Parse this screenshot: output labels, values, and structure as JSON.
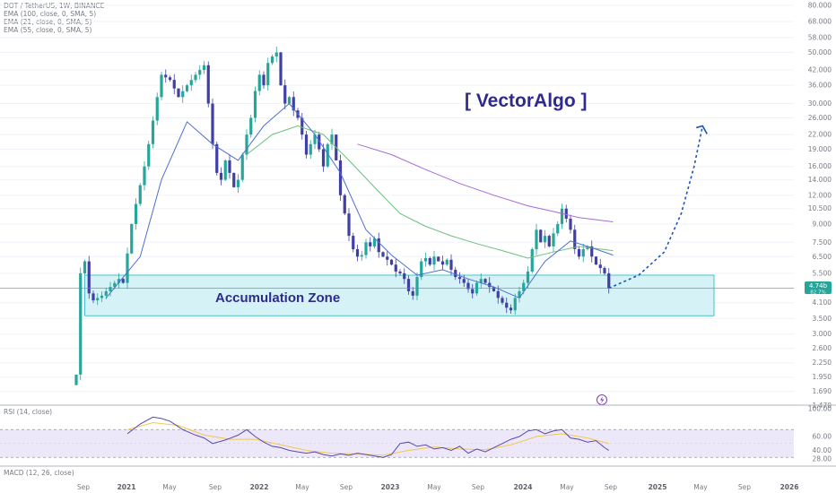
{
  "header": {
    "symbol_line": "DOT / TetherUS, 1W, BINANCE",
    "indicators": [
      "EMA (100, close, 0, SMA, 5)",
      "EMA (21, close, 0, SMA, 5)",
      "EMA (55, close, 0, SMA, 5)"
    ]
  },
  "annotations": {
    "brand": "[ VectorAlgo ]",
    "zone_label": "Accumulation Zone",
    "price_badge": "4.74b",
    "price_badge_sub": "82 7%",
    "lightning_icon": "lightning-icon"
  },
  "rsi_panel": {
    "label": "RSI (14, close)",
    "ticks": [
      "100.00",
      "60.00",
      "40.00",
      "28.00"
    ]
  },
  "macd_panel": {
    "label": "MACD (12, 26, close)"
  },
  "time_axis": [
    {
      "label": "Sep",
      "year": false
    },
    {
      "label": "2021",
      "year": true
    },
    {
      "label": "May",
      "year": false
    },
    {
      "label": "Sep",
      "year": false
    },
    {
      "label": "2022",
      "year": true
    },
    {
      "label": "May",
      "year": false
    },
    {
      "label": "Sep",
      "year": false
    },
    {
      "label": "2023",
      "year": true
    },
    {
      "label": "May",
      "year": false
    },
    {
      "label": "Sep",
      "year": false
    },
    {
      "label": "2024",
      "year": true
    },
    {
      "label": "May",
      "year": false
    },
    {
      "label": "Sep",
      "year": false
    },
    {
      "label": "2025",
      "year": true
    },
    {
      "label": "May",
      "year": false
    },
    {
      "label": "Sep",
      "year": false
    },
    {
      "label": "2026",
      "year": true
    }
  ],
  "colors": {
    "up": "#26a69a",
    "down": "#3f3fa6",
    "ema21": "#4f6fcf",
    "ema55": "#6cc17c",
    "ema100": "#a66bd6",
    "zone_fill": "#d5f3f6",
    "zone_stroke": "#1fb6c1",
    "brand": "#2f2a8c",
    "projection": "#1e54b8",
    "rsi_line": "#5b4aa8",
    "rsi_ma": "#f0c94a",
    "rsi_band": "#ede7fa"
  },
  "chart_data": {
    "type": "candlestick",
    "title": "DOT / TetherUS, 1W, BINANCE",
    "y_scale": "log",
    "ylim": [
      1.5,
      80
    ],
    "y_ticks": [
      80,
      68,
      58,
      50,
      42,
      36,
      30,
      26,
      22,
      19,
      16,
      14,
      12,
      10.5,
      9,
      7.5,
      6.5,
      5.5,
      4.1,
      3.5,
      3.0,
      2.6,
      2.25,
      1.95,
      1.69,
      1.47
    ],
    "y_tick_labels": [
      "80.000",
      "68.000",
      "58.000",
      "50.000",
      "42.000",
      "36.000",
      "30.000",
      "26.000",
      "22.000",
      "19.000",
      "16.000",
      "14.000",
      "12.000",
      "10.500",
      "9.000",
      "7.500",
      "6.500",
      "5.500",
      "4.100",
      "3.500",
      "3.000",
      "2.600",
      "2.250",
      "1.950",
      "1.690",
      "1.470"
    ],
    "last_price": 4.74,
    "accumulation_zone": {
      "low": 3.6,
      "high": 5.4
    },
    "price_path": [
      [
        0,
        2.0
      ],
      [
        1,
        5.5
      ],
      [
        2,
        6.2
      ],
      [
        3,
        4.5
      ],
      [
        4,
        4.2
      ],
      [
        5,
        4.3
      ],
      [
        6,
        4.4
      ],
      [
        8,
        4.8
      ],
      [
        10,
        5.2
      ],
      [
        11,
        5.0
      ],
      [
        13,
        9
      ],
      [
        14,
        11
      ],
      [
        16,
        16
      ],
      [
        17,
        20
      ],
      [
        19,
        32
      ],
      [
        20,
        40
      ],
      [
        22,
        38
      ],
      [
        24,
        32
      ],
      [
        26,
        36
      ],
      [
        28,
        40
      ],
      [
        30,
        44
      ],
      [
        31,
        30
      ],
      [
        32,
        20
      ],
      [
        33,
        15
      ],
      [
        34,
        14
      ],
      [
        35,
        17
      ],
      [
        36,
        15
      ],
      [
        37,
        13
      ],
      [
        38,
        14
      ],
      [
        39,
        18
      ],
      [
        40,
        22
      ],
      [
        41,
        26
      ],
      [
        42,
        34
      ],
      [
        43,
        40
      ],
      [
        44,
        36
      ],
      [
        45,
        45
      ],
      [
        46,
        48
      ],
      [
        47,
        50
      ],
      [
        48,
        36
      ],
      [
        49,
        30
      ],
      [
        50,
        32
      ],
      [
        51,
        28
      ],
      [
        52,
        26
      ],
      [
        53,
        22
      ],
      [
        54,
        18
      ],
      [
        55,
        20
      ],
      [
        56,
        22
      ],
      [
        57,
        19
      ],
      [
        58,
        16
      ],
      [
        59,
        20
      ],
      [
        60,
        22
      ],
      [
        61,
        17
      ],
      [
        62,
        12
      ],
      [
        63,
        10
      ],
      [
        64,
        8
      ],
      [
        65,
        7
      ],
      [
        66,
        6.5
      ],
      [
        67,
        6.6
      ],
      [
        68,
        7.5
      ],
      [
        69,
        7.2
      ],
      [
        70,
        7.8
      ],
      [
        71,
        6.8
      ],
      [
        72,
        6.5
      ],
      [
        73,
        6.3
      ],
      [
        74,
        6.0
      ],
      [
        75,
        5.6
      ],
      [
        76,
        5.5
      ],
      [
        77,
        5.2
      ],
      [
        78,
        4.6
      ],
      [
        79,
        4.4
      ],
      [
        80,
        5.3
      ],
      [
        81,
        6.2
      ],
      [
        82,
        6.4
      ],
      [
        83,
        6.0
      ],
      [
        84,
        6.5
      ],
      [
        85,
        6.2
      ],
      [
        86,
        6.0
      ],
      [
        87,
        6.3
      ],
      [
        88,
        5.7
      ],
      [
        89,
        5.3
      ],
      [
        90,
        5.2
      ],
      [
        91,
        5.0
      ],
      [
        92,
        4.7
      ],
      [
        93,
        4.5
      ],
      [
        94,
        5.0
      ],
      [
        95,
        5.2
      ],
      [
        96,
        5.0
      ],
      [
        97,
        4.8
      ],
      [
        98,
        4.6
      ],
      [
        99,
        4.3
      ],
      [
        100,
        4.1
      ],
      [
        101,
        3.9
      ],
      [
        102,
        3.8
      ],
      [
        103,
        4.3
      ],
      [
        104,
        4.6
      ],
      [
        105,
        5.0
      ],
      [
        106,
        5.6
      ],
      [
        107,
        7.0
      ],
      [
        108,
        8.5
      ],
      [
        109,
        7.5
      ],
      [
        110,
        8.0
      ],
      [
        111,
        7.2
      ],
      [
        112,
        8.2
      ],
      [
        113,
        9.0
      ],
      [
        114,
        10.5
      ],
      [
        115,
        9.5
      ],
      [
        116,
        8.5
      ],
      [
        117,
        7.0
      ],
      [
        118,
        6.5
      ],
      [
        119,
        7.0
      ],
      [
        120,
        7.2
      ],
      [
        121,
        6.5
      ],
      [
        122,
        6.0
      ],
      [
        123,
        5.8
      ],
      [
        124,
        5.5
      ],
      [
        125,
        4.74
      ]
    ],
    "ema21": [
      [
        7,
        4.3
      ],
      [
        15,
        6.5
      ],
      [
        20,
        14
      ],
      [
        26,
        25
      ],
      [
        32,
        20
      ],
      [
        38,
        17
      ],
      [
        44,
        24
      ],
      [
        50,
        30
      ],
      [
        56,
        22
      ],
      [
        62,
        15
      ],
      [
        68,
        8.5
      ],
      [
        74,
        6.6
      ],
      [
        80,
        5.4
      ],
      [
        86,
        5.7
      ],
      [
        92,
        5.2
      ],
      [
        98,
        4.8
      ],
      [
        104,
        4.3
      ],
      [
        110,
        6.2
      ],
      [
        116,
        7.6
      ],
      [
        122,
        7.0
      ],
      [
        126,
        6.6
      ]
    ],
    "ema55": [
      [
        40,
        18
      ],
      [
        46,
        22
      ],
      [
        52,
        24
      ],
      [
        58,
        22
      ],
      [
        64,
        17
      ],
      [
        70,
        13
      ],
      [
        76,
        10
      ],
      [
        82,
        8.8
      ],
      [
        88,
        8.0
      ],
      [
        94,
        7.4
      ],
      [
        100,
        6.9
      ],
      [
        106,
        6.4
      ],
      [
        112,
        6.8
      ],
      [
        118,
        7.2
      ],
      [
        126,
        6.9
      ]
    ],
    "ema100": [
      [
        66,
        20
      ],
      [
        74,
        18
      ],
      [
        82,
        15.5
      ],
      [
        90,
        13.5
      ],
      [
        98,
        12.0
      ],
      [
        106,
        10.8
      ],
      [
        112,
        10.2
      ],
      [
        118,
        9.6
      ],
      [
        126,
        9.2
      ]
    ],
    "projection": [
      [
        125,
        4.74
      ],
      [
        132,
        5.4
      ],
      [
        138,
        6.8
      ],
      [
        142,
        10
      ],
      [
        145,
        16
      ],
      [
        147,
        24
      ]
    ],
    "rsi": [
      [
        12,
        64
      ],
      [
        15,
        78
      ],
      [
        18,
        88
      ],
      [
        20,
        86
      ],
      [
        22,
        82
      ],
      [
        25,
        70
      ],
      [
        28,
        62
      ],
      [
        30,
        58
      ],
      [
        32,
        50
      ],
      [
        35,
        55
      ],
      [
        38,
        62
      ],
      [
        40,
        70
      ],
      [
        42,
        60
      ],
      [
        44,
        52
      ],
      [
        46,
        46
      ],
      [
        48,
        44
      ],
      [
        50,
        40
      ],
      [
        52,
        38
      ],
      [
        54,
        36
      ],
      [
        56,
        38
      ],
      [
        58,
        34
      ],
      [
        60,
        32
      ],
      [
        62,
        35
      ],
      [
        64,
        33
      ],
      [
        66,
        36
      ],
      [
        68,
        34
      ],
      [
        70,
        32
      ],
      [
        72,
        30
      ],
      [
        74,
        34
      ],
      [
        76,
        50
      ],
      [
        78,
        52
      ],
      [
        80,
        46
      ],
      [
        82,
        48
      ],
      [
        84,
        42
      ],
      [
        86,
        44
      ],
      [
        88,
        40
      ],
      [
        90,
        46
      ],
      [
        92,
        36
      ],
      [
        94,
        42
      ],
      [
        96,
        38
      ],
      [
        98,
        44
      ],
      [
        100,
        50
      ],
      [
        102,
        56
      ],
      [
        104,
        60
      ],
      [
        106,
        68
      ],
      [
        108,
        70
      ],
      [
        110,
        64
      ],
      [
        112,
        68
      ],
      [
        114,
        70
      ],
      [
        116,
        58
      ],
      [
        118,
        56
      ],
      [
        120,
        52
      ],
      [
        122,
        54
      ],
      [
        124,
        44
      ],
      [
        125,
        40
      ]
    ],
    "rsi_ma": [
      [
        12,
        70
      ],
      [
        18,
        80
      ],
      [
        24,
        76
      ],
      [
        30,
        62
      ],
      [
        36,
        56
      ],
      [
        42,
        56
      ],
      [
        48,
        48
      ],
      [
        54,
        40
      ],
      [
        60,
        36
      ],
      [
        66,
        35
      ],
      [
        72,
        33
      ],
      [
        78,
        40
      ],
      [
        84,
        45
      ],
      [
        90,
        42
      ],
      [
        96,
        41
      ],
      [
        102,
        48
      ],
      [
        108,
        60
      ],
      [
        114,
        64
      ],
      [
        120,
        58
      ],
      [
        125,
        50
      ]
    ]
  }
}
